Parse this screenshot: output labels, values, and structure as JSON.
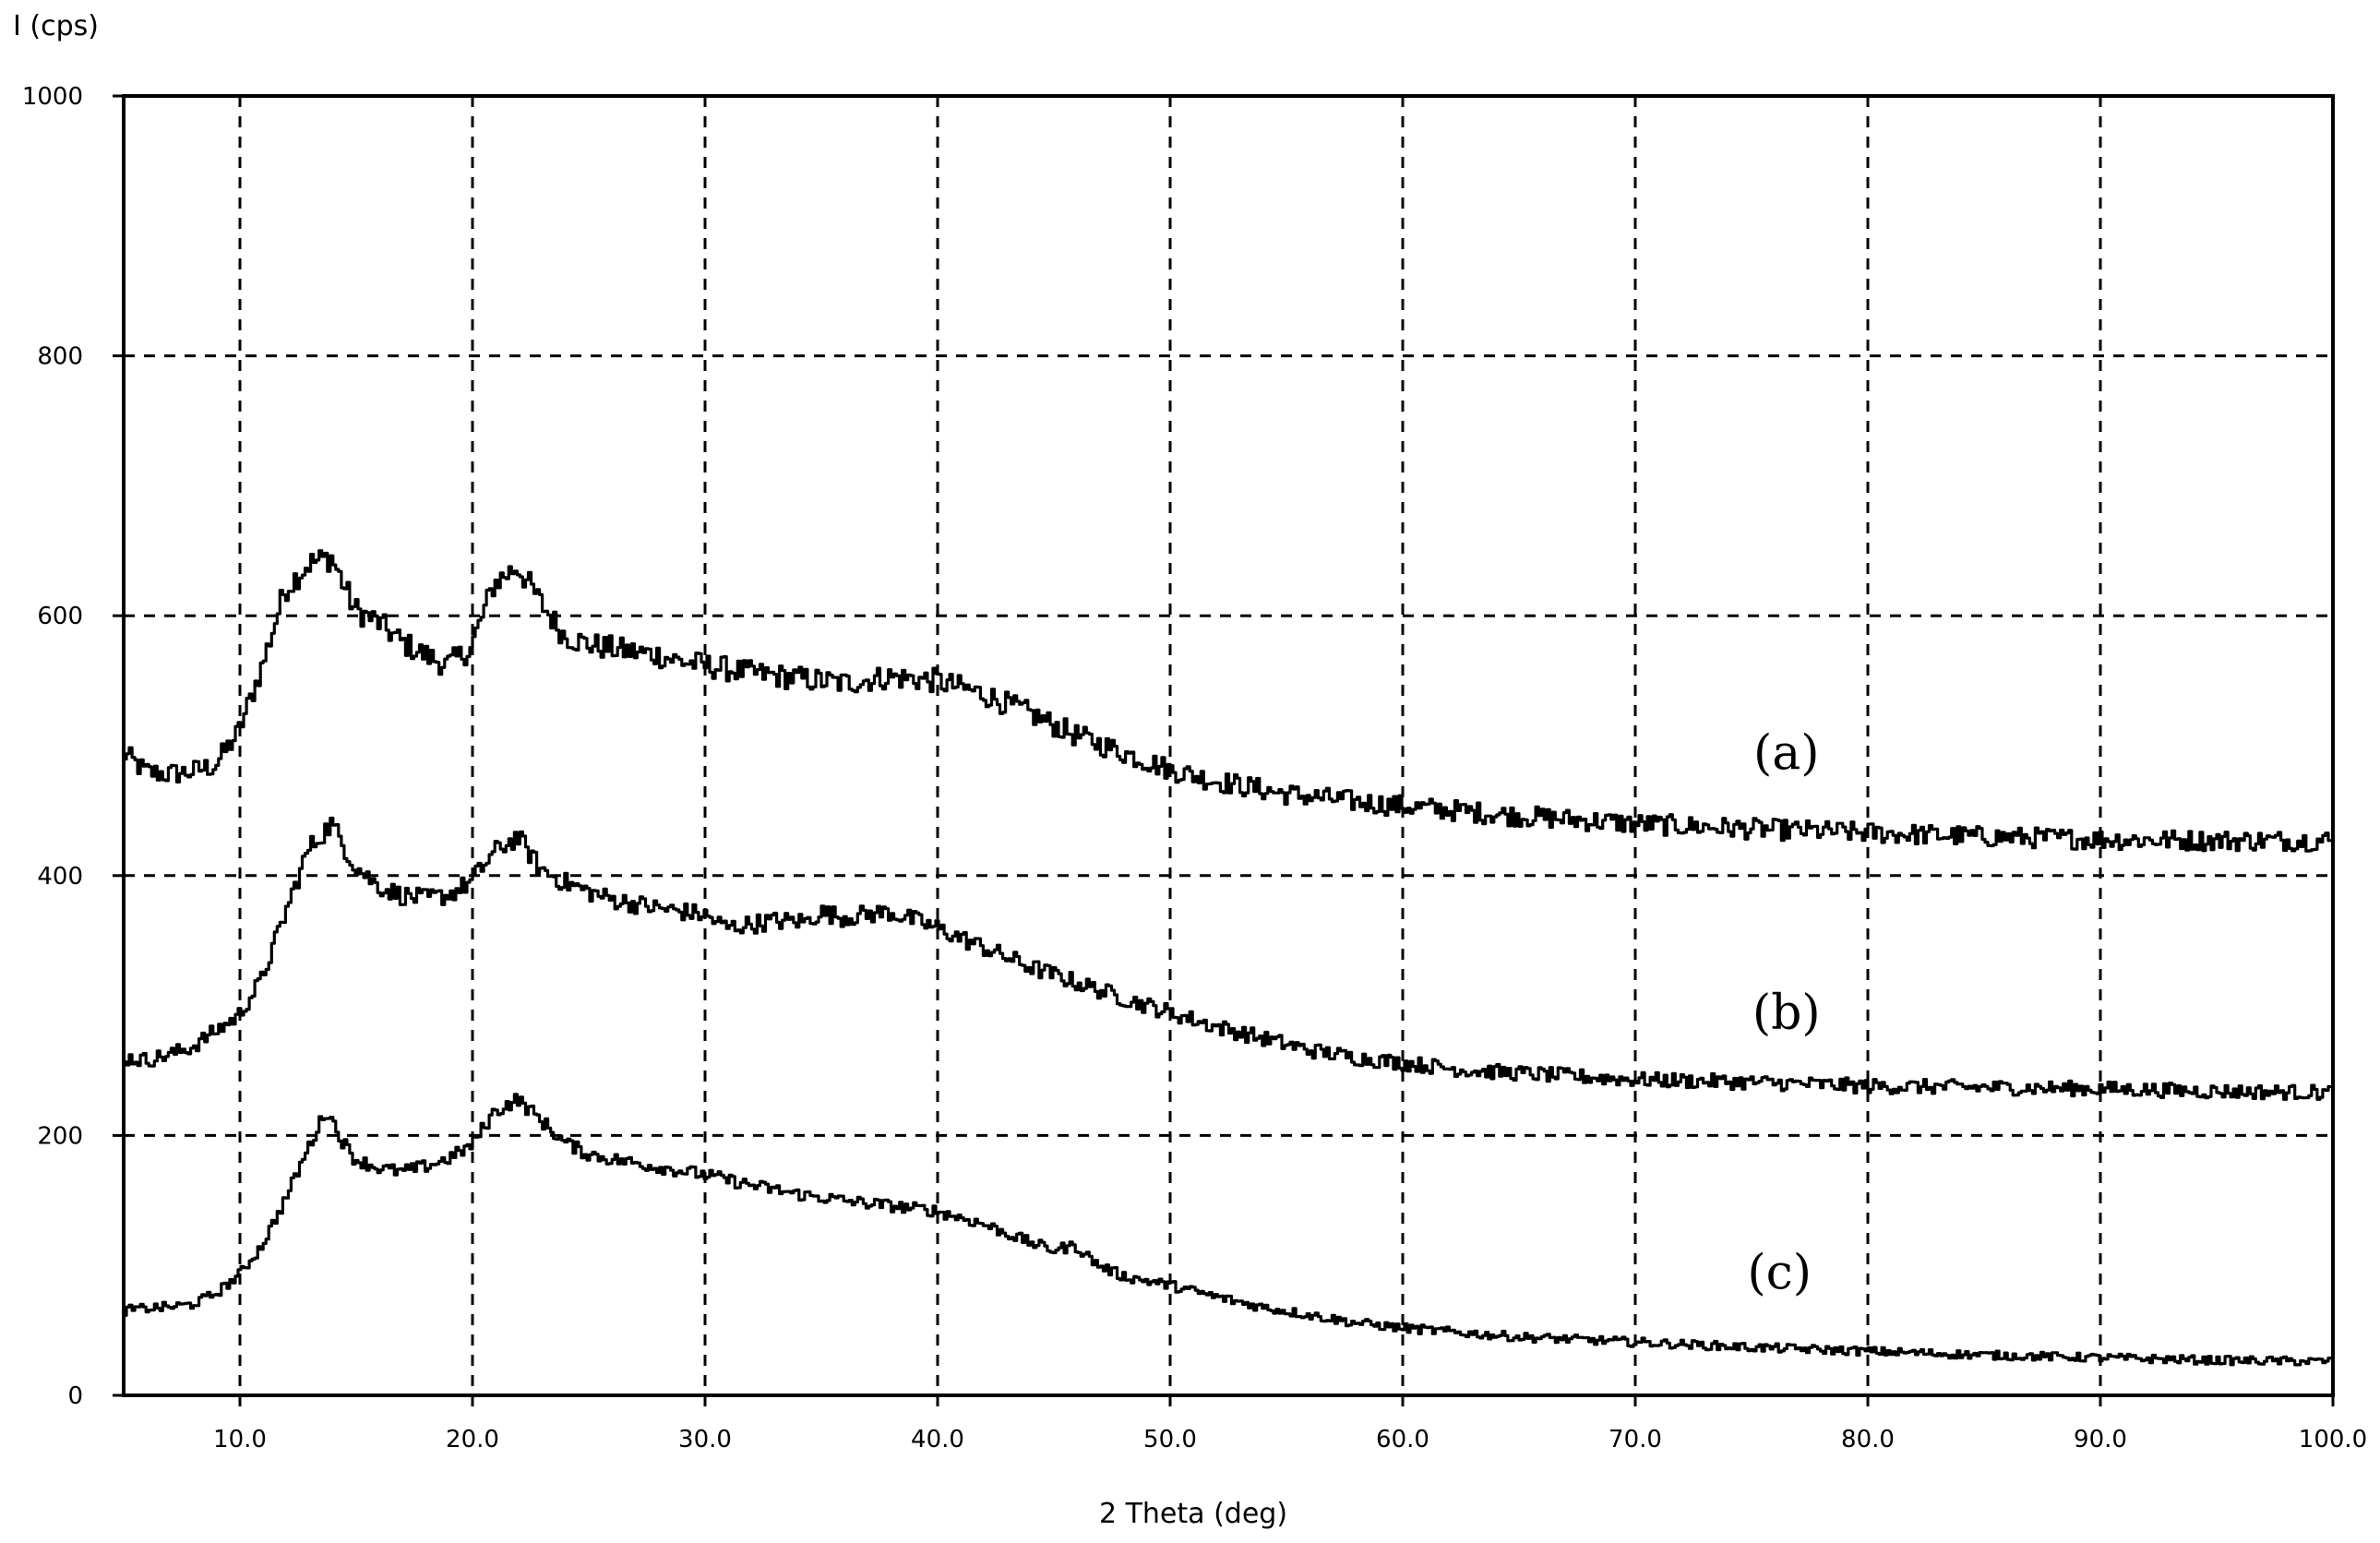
{
  "chart_data": {
    "type": "line",
    "title": "",
    "xlabel": "2 Theta (deg)",
    "ylabel": "I (cps)",
    "xlim": [
      5,
      100
    ],
    "ylim": [
      0,
      1000
    ],
    "x_ticks": [
      10,
      20,
      30,
      40,
      50,
      60,
      70,
      80,
      90,
      100
    ],
    "x_tick_labels": [
      "10.0",
      "20.0",
      "30.0",
      "40.0",
      "50.0",
      "60.0",
      "70.0",
      "80.0",
      "90.0",
      "100.0"
    ],
    "y_ticks": [
      0,
      200,
      400,
      600,
      800,
      1000
    ],
    "y_tick_labels": [
      "0",
      "200",
      "400",
      "600",
      "800",
      "1000"
    ],
    "grid": true,
    "grid_style": "dashed",
    "line_color": "#000000",
    "series": [
      {
        "name": "(a)",
        "label_x": 76.5,
        "label_y": 482,
        "points": [
          [
            5,
            495
          ],
          [
            6,
            480
          ],
          [
            7,
            478
          ],
          [
            8,
            480
          ],
          [
            9,
            485
          ],
          [
            10,
            510
          ],
          [
            11,
            560
          ],
          [
            12,
            620
          ],
          [
            13,
            640
          ],
          [
            14,
            645
          ],
          [
            15,
            605
          ],
          [
            16,
            595
          ],
          [
            17,
            580
          ],
          [
            18,
            570
          ],
          [
            19,
            562
          ],
          [
            20,
            575
          ],
          [
            21,
            625
          ],
          [
            22,
            638
          ],
          [
            23,
            610
          ],
          [
            24,
            585
          ],
          [
            25,
            578
          ],
          [
            26,
            575
          ],
          [
            27,
            572
          ],
          [
            28,
            570
          ],
          [
            29,
            565
          ],
          [
            30,
            562
          ],
          [
            32,
            556
          ],
          [
            34,
            552
          ],
          [
            36,
            548
          ],
          [
            38,
            553
          ],
          [
            40,
            550
          ],
          [
            42,
            540
          ],
          [
            44,
            525
          ],
          [
            46,
            508
          ],
          [
            48,
            495
          ],
          [
            50,
            482
          ],
          [
            52,
            473
          ],
          [
            55,
            463
          ],
          [
            58,
            457
          ],
          [
            61,
            452
          ],
          [
            65,
            446
          ],
          [
            70,
            440
          ],
          [
            75,
            436
          ],
          [
            80,
            433
          ],
          [
            85,
            430
          ],
          [
            90,
            428
          ],
          [
            95,
            427
          ],
          [
            100,
            427
          ]
        ]
      },
      {
        "name": "(b)",
        "label_x": 76.5,
        "label_y": 282,
        "points": [
          [
            5,
            260
          ],
          [
            6,
            258
          ],
          [
            7,
            262
          ],
          [
            8,
            268
          ],
          [
            9,
            280
          ],
          [
            10,
            292
          ],
          [
            11,
            320
          ],
          [
            12,
            370
          ],
          [
            13,
            420
          ],
          [
            14,
            440
          ],
          [
            15,
            408
          ],
          [
            16,
            392
          ],
          [
            17,
            385
          ],
          [
            18,
            382
          ],
          [
            19,
            385
          ],
          [
            20,
            395
          ],
          [
            21,
            418
          ],
          [
            22,
            430
          ],
          [
            23,
            405
          ],
          [
            24,
            395
          ],
          [
            25,
            388
          ],
          [
            26,
            382
          ],
          [
            28,
            375
          ],
          [
            30,
            370
          ],
          [
            31,
            360
          ],
          [
            33,
            365
          ],
          [
            34.5,
            365
          ],
          [
            35,
            372
          ],
          [
            36,
            368
          ],
          [
            38,
            372
          ],
          [
            40,
            360
          ],
          [
            42,
            345
          ],
          [
            44,
            330
          ],
          [
            46,
            318
          ],
          [
            48,
            306
          ],
          [
            50,
            295
          ],
          [
            52,
            284
          ],
          [
            54,
            275
          ],
          [
            56,
            266
          ],
          [
            58,
            260
          ],
          [
            60,
            256
          ],
          [
            63,
            250
          ],
          [
            66,
            247
          ],
          [
            70,
            243
          ],
          [
            75,
            241
          ],
          [
            80,
            238
          ],
          [
            85,
            237
          ],
          [
            90,
            236
          ],
          [
            95,
            234
          ],
          [
            100,
            233
          ]
        ]
      },
      {
        "name": "(c)",
        "label_x": 76.2,
        "label_y": 82,
        "points": [
          [
            5,
            65
          ],
          [
            6,
            67
          ],
          [
            7,
            68
          ],
          [
            8,
            70
          ],
          [
            9,
            78
          ],
          [
            10,
            92
          ],
          [
            11,
            115
          ],
          [
            12,
            150
          ],
          [
            13,
            190
          ],
          [
            13.8,
            220
          ],
          [
            14.5,
            195
          ],
          [
            15,
            182
          ],
          [
            16,
            175
          ],
          [
            17,
            172
          ],
          [
            18,
            176
          ],
          [
            19,
            182
          ],
          [
            20,
            192
          ],
          [
            21,
            218
          ],
          [
            22,
            228
          ],
          [
            23,
            212
          ],
          [
            24,
            195
          ],
          [
            25,
            186
          ],
          [
            26,
            182
          ],
          [
            28,
            176
          ],
          [
            30,
            170
          ],
          [
            32,
            162
          ],
          [
            34,
            155
          ],
          [
            36,
            150
          ],
          [
            38,
            146
          ],
          [
            40,
            142
          ],
          [
            42,
            132
          ],
          [
            44,
            118
          ],
          [
            45,
            112
          ],
          [
            46,
            115
          ],
          [
            47,
            100
          ],
          [
            48,
            92
          ],
          [
            50,
            85
          ],
          [
            52,
            76
          ],
          [
            54,
            68
          ],
          [
            56,
            62
          ],
          [
            58,
            56
          ],
          [
            60,
            52
          ],
          [
            62,
            49
          ],
          [
            65,
            45
          ],
          [
            70,
            41
          ],
          [
            75,
            37
          ],
          [
            80,
            34
          ],
          [
            85,
            31
          ],
          [
            90,
            29
          ],
          [
            95,
            27
          ],
          [
            100,
            26
          ]
        ]
      }
    ]
  }
}
